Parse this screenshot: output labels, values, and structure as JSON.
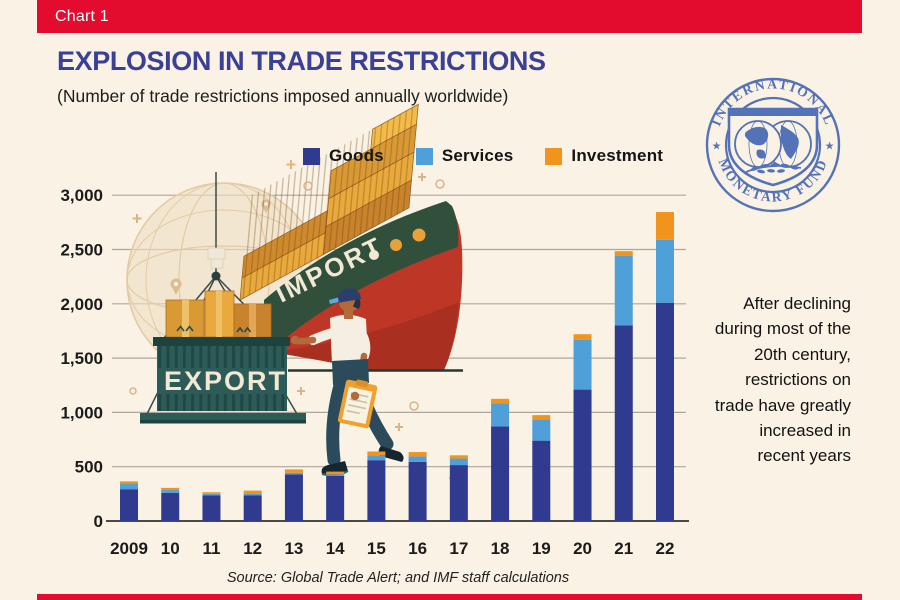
{
  "banner": {
    "label": "Chart 1"
  },
  "header": {
    "title": "EXPLOSION IN TRADE RESTRICTIONS",
    "subtitle": "(Number of trade restrictions imposed annually worldwide)"
  },
  "logo": {
    "top_text": "INTERNATIONAL",
    "bottom_text": "MONETARY FUND",
    "star": "★",
    "color": "#5472B8"
  },
  "annotation": {
    "lines": [
      "After declining",
      "during most of the",
      "20th century,",
      "restrictions on",
      "trade have greatly",
      "increased in",
      "recent years"
    ]
  },
  "source": {
    "text": "Source: Global Trade Alert; and IMF staff calculations"
  },
  "illustration": {
    "import_label": "IMPORT",
    "export_label": "EXPORT"
  },
  "palette": {
    "background": "#FAF2E4",
    "accent_red": "#E30B2E",
    "title_navy": "#3A4095",
    "gridline": "#ACA79D",
    "axis_line": "#4A4A45"
  },
  "chart_data": {
    "type": "bar",
    "stacked": true,
    "title": "EXPLOSION IN TRADE RESTRICTIONS",
    "subtitle": "(Number of trade restrictions imposed annually worldwide)",
    "categories": [
      "2009",
      "10",
      "11",
      "12",
      "13",
      "14",
      "15",
      "16",
      "17",
      "18",
      "19",
      "20",
      "21",
      "22"
    ],
    "series": [
      {
        "name": "Goods",
        "color": "#303B8F",
        "values": [
          290,
          260,
          235,
          235,
          430,
          415,
          560,
          545,
          515,
          870,
          740,
          1210,
          1800,
          2010
        ]
      },
      {
        "name": "Services",
        "color": "#4FA0D8",
        "values": [
          55,
          25,
          15,
          20,
          15,
          15,
          45,
          50,
          60,
          215,
          190,
          460,
          640,
          580
        ]
      },
      {
        "name": "Investment",
        "color": "#F0941E",
        "values": [
          20,
          20,
          15,
          25,
          30,
          25,
          35,
          40,
          30,
          40,
          45,
          50,
          45,
          255
        ]
      }
    ],
    "xlabel": "",
    "ylabel": "",
    "ylim": [
      0,
      3000
    ],
    "ytick_step": 500,
    "grid": true,
    "legend_position": "top"
  }
}
